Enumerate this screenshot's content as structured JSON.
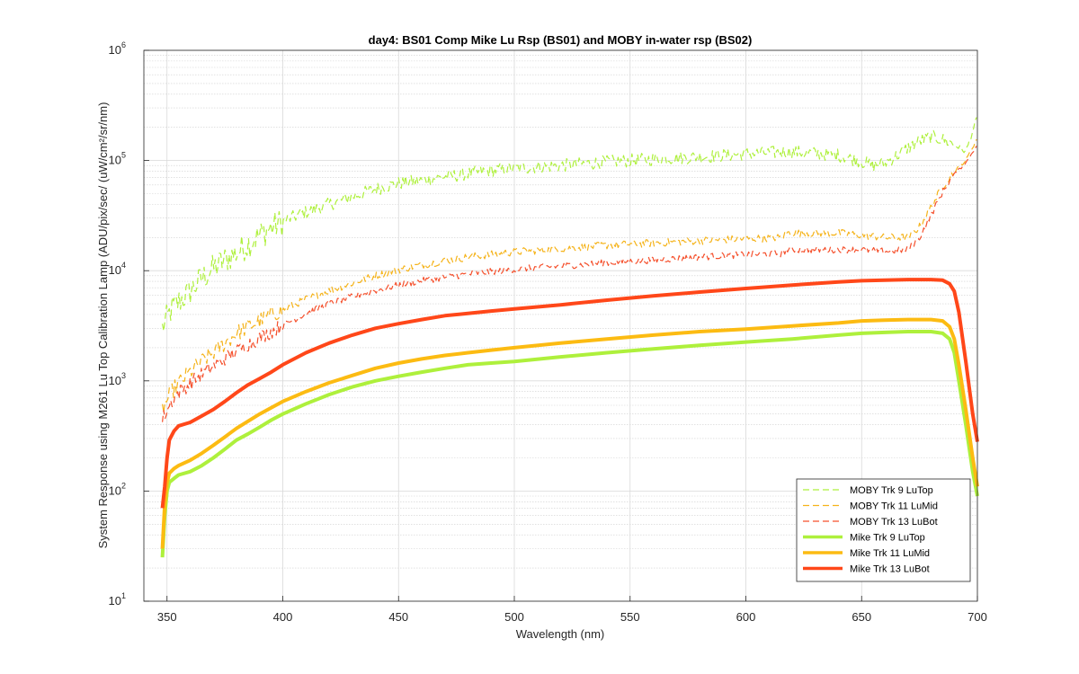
{
  "chart_data": {
    "type": "line",
    "title": "day4: BS01  Comp Mike Lu Rsp (BS01) and MOBY in-water rsp (BS02)",
    "xlabel": "Wavelength (nm)",
    "ylabel": "System Response using M261 Lu Top Calibration Lamp  (ADU/pix/sec/ (uW/cm²/sr/nm)",
    "xlim": [
      340,
      700
    ],
    "ylim": [
      10,
      1000000
    ],
    "yscale": "log",
    "grid": true,
    "minor_grid": true,
    "legend_position": "bottom-right",
    "x_ticks": [
      350,
      400,
      450,
      500,
      550,
      600,
      650,
      700
    ],
    "y_ticks": [
      {
        "base": "10",
        "exp": "1",
        "value": 10
      },
      {
        "base": "10",
        "exp": "2",
        "value": 100
      },
      {
        "base": "10",
        "exp": "3",
        "value": 1000
      },
      {
        "base": "10",
        "exp": "4",
        "value": 10000
      },
      {
        "base": "10",
        "exp": "5",
        "value": 100000
      },
      {
        "base": "10",
        "exp": "6",
        "value": 1000000
      }
    ],
    "series": [
      {
        "name": "MOBY Trk 9 LuTop",
        "color": "#aef03c",
        "style": "dashed",
        "width": 1.2,
        "x": [
          348,
          352,
          355,
          360,
          365,
          370,
          375,
          380,
          385,
          390,
          395,
          400,
          410,
          420,
          430,
          440,
          450,
          460,
          470,
          480,
          490,
          500,
          520,
          540,
          560,
          580,
          600,
          620,
          640,
          650,
          655,
          660,
          665,
          670,
          675,
          680,
          685,
          690,
          695,
          700
        ],
        "y": [
          3000,
          4500,
          5200,
          6500,
          8500,
          10500,
          12500,
          14500,
          17500,
          21000,
          24500,
          28000,
          34000,
          40000,
          47000,
          55000,
          62000,
          66000,
          71000,
          76000,
          81000,
          85000,
          90000,
          97000,
          103000,
          108000,
          115000,
          120000,
          112000,
          98000,
          90000,
          95000,
          110000,
          130000,
          150000,
          165000,
          155000,
          140000,
          120000,
          250000
        ],
        "jitter": 0.12
      },
      {
        "name": "MOBY Trk 11 LuMid",
        "color": "#f5b31a",
        "style": "dashed",
        "width": 1.2,
        "x": [
          348,
          352,
          355,
          360,
          365,
          370,
          375,
          380,
          385,
          390,
          395,
          400,
          410,
          420,
          430,
          440,
          450,
          460,
          470,
          480,
          490,
          500,
          520,
          540,
          560,
          580,
          600,
          615,
          618,
          630,
          640,
          650,
          660,
          670,
          675,
          680,
          685,
          690,
          695,
          700
        ],
        "y": [
          550,
          800,
          950,
          1200,
          1500,
          1800,
          2200,
          2700,
          3100,
          3500,
          4000,
          4400,
          5500,
          6600,
          7700,
          9000,
          10200,
          11300,
          12300,
          13300,
          14000,
          14800,
          15800,
          17000,
          17800,
          18700,
          19500,
          20000,
          22000,
          22000,
          22000,
          21000,
          20000,
          20000,
          25000,
          38000,
          58000,
          80000,
          100000,
          160000
        ],
        "jitter": 0.07
      },
      {
        "name": "MOBY Trk 13 LuBot",
        "color": "#f5502c",
        "style": "dashed",
        "width": 1.2,
        "x": [
          348,
          352,
          355,
          360,
          365,
          370,
          375,
          380,
          385,
          390,
          395,
          400,
          410,
          420,
          430,
          440,
          450,
          460,
          470,
          480,
          490,
          500,
          520,
          540,
          560,
          580,
          600,
          615,
          618,
          630,
          640,
          650,
          660,
          670,
          675,
          680,
          685,
          690,
          695,
          700
        ],
        "y": [
          450,
          650,
          780,
          950,
          1150,
          1350,
          1600,
          1850,
          2150,
          2450,
          2800,
          3200,
          4100,
          5000,
          5800,
          6600,
          7400,
          8100,
          8700,
          9300,
          9800,
          10300,
          11000,
          11800,
          12500,
          13300,
          14000,
          14300,
          15500,
          15500,
          15500,
          15500,
          15000,
          15500,
          20000,
          32000,
          52000,
          75000,
          95000,
          140000
        ],
        "jitter": 0.06
      },
      {
        "name": "Mike Trk 9 LuTop",
        "color": "#aef03c",
        "style": "solid",
        "width": 4,
        "x": [
          348,
          349,
          350,
          351,
          353,
          355,
          360,
          365,
          370,
          375,
          380,
          385,
          390,
          395,
          400,
          410,
          420,
          430,
          440,
          450,
          460,
          470,
          480,
          490,
          500,
          520,
          540,
          560,
          580,
          600,
          620,
          640,
          650,
          660,
          670,
          680,
          685,
          688,
          690,
          692,
          695,
          698,
          700
        ],
        "y": [
          25,
          60,
          100,
          120,
          130,
          140,
          150,
          170,
          200,
          240,
          290,
          330,
          380,
          440,
          500,
          620,
          750,
          880,
          1000,
          1100,
          1200,
          1300,
          1400,
          1450,
          1500,
          1650,
          1800,
          1950,
          2100,
          2250,
          2400,
          2600,
          2700,
          2750,
          2800,
          2800,
          2700,
          2400,
          1800,
          1000,
          400,
          150,
          90
        ],
        "jitter": 0
      },
      {
        "name": "Mike Trk 11 LuMid",
        "color": "#fcbb12",
        "style": "solid",
        "width": 4,
        "x": [
          348,
          349,
          350,
          351,
          353,
          355,
          360,
          365,
          370,
          375,
          380,
          385,
          390,
          395,
          400,
          410,
          420,
          430,
          440,
          450,
          460,
          470,
          480,
          490,
          500,
          520,
          540,
          560,
          580,
          600,
          620,
          640,
          650,
          660,
          670,
          680,
          685,
          688,
          690,
          692,
          695,
          698,
          700
        ],
        "y": [
          30,
          75,
          120,
          145,
          160,
          170,
          190,
          220,
          260,
          310,
          370,
          430,
          500,
          570,
          650,
          800,
          960,
          1120,
          1300,
          1450,
          1580,
          1700,
          1800,
          1900,
          2000,
          2200,
          2400,
          2600,
          2800,
          2950,
          3150,
          3350,
          3500,
          3550,
          3600,
          3600,
          3500,
          3100,
          2400,
          1400,
          550,
          200,
          110
        ],
        "jitter": 0
      },
      {
        "name": "Mike Trk 13 LuBot",
        "color": "#ff4719",
        "style": "solid",
        "width": 4,
        "x": [
          348,
          349,
          350,
          351,
          353,
          355,
          360,
          365,
          370,
          375,
          380,
          385,
          390,
          395,
          400,
          410,
          420,
          430,
          440,
          450,
          460,
          470,
          480,
          490,
          500,
          520,
          540,
          560,
          580,
          600,
          620,
          640,
          650,
          660,
          670,
          680,
          685,
          688,
          690,
          692,
          695,
          698,
          700
        ],
        "y": [
          70,
          110,
          200,
          290,
          350,
          390,
          420,
          480,
          550,
          650,
          780,
          920,
          1050,
          1200,
          1400,
          1800,
          2200,
          2600,
          3000,
          3300,
          3600,
          3900,
          4100,
          4300,
          4500,
          4900,
          5400,
          5900,
          6400,
          6900,
          7400,
          7900,
          8100,
          8200,
          8300,
          8300,
          8200,
          7600,
          6500,
          4200,
          1500,
          500,
          280
        ],
        "jitter": 0
      }
    ]
  }
}
